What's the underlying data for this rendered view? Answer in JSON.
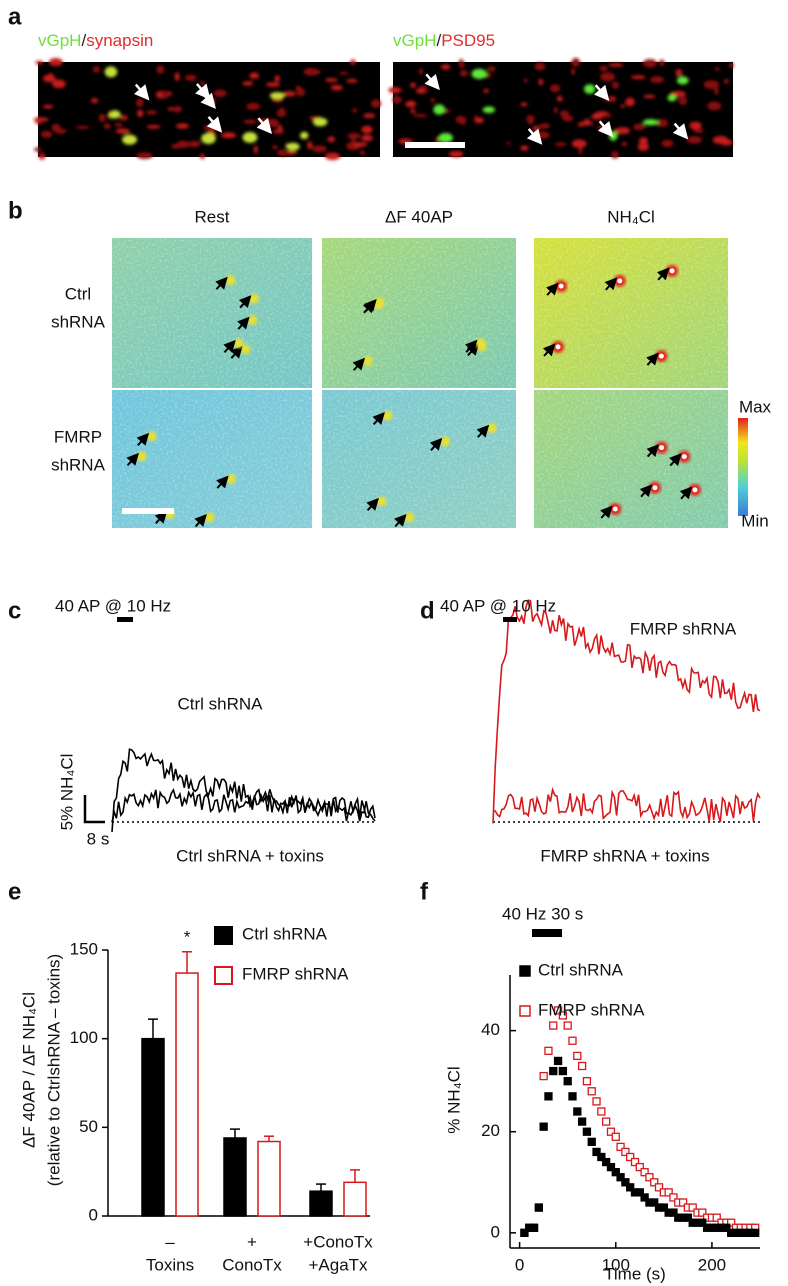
{
  "panel_labels": [
    "a",
    "b",
    "c",
    "d",
    "e",
    "f"
  ],
  "panel_a": {
    "images": [
      {
        "label_parts": [
          "vGpH",
          "/",
          "synapsin"
        ]
      },
      {
        "label_parts": [
          "vGpH",
          "/",
          "PSD95"
        ]
      }
    ]
  },
  "panel_b": {
    "columns": [
      "Rest",
      "ΔF 40AP",
      "NH₄Cl"
    ],
    "rows": [
      [
        "Ctrl",
        "shRNA"
      ],
      [
        "FMRP",
        "shRNA"
      ]
    ],
    "scale": [
      "Max",
      "Min"
    ]
  },
  "panel_c": {
    "stimulus": "40 AP @ 10 Hz",
    "traces": [
      "Ctrl shRNA",
      "Ctrl shRNA + toxins"
    ],
    "scale_y": "5% NH₄Cl",
    "scale_x": "8 s"
  },
  "panel_d": {
    "stimulus": "40 AP @ 10 Hz",
    "traces": [
      "FMRP shRNA",
      "FMRP shRNA + toxins"
    ]
  },
  "chart_data": [
    {
      "type": "bar",
      "ylabel": [
        "ΔF 40AP / ΔF NH₄Cl",
        "(relative to CtrlshRNA – toxins)"
      ],
      "categories": [
        [
          "–",
          "Toxins"
        ],
        [
          "+",
          "ConoTx"
        ],
        [
          "+ConoTx",
          "+AgaTx"
        ]
      ],
      "series": [
        {
          "name": "Ctrl shRNA",
          "color": "#000000",
          "filled": true,
          "values": [
            100,
            44,
            14
          ],
          "errors": [
            11,
            5,
            4
          ]
        },
        {
          "name": "FMRP shRNA",
          "color": "#d7191c",
          "filled": false,
          "values": [
            137,
            42,
            19
          ],
          "errors": [
            12,
            3,
            7
          ]
        }
      ],
      "annotations": [
        {
          "text": "*",
          "series": 1,
          "category": 0
        }
      ],
      "ylim": [
        0,
        150
      ],
      "yticks": [
        0,
        50,
        100,
        150
      ],
      "legend": "upper right"
    },
    {
      "type": "scatter",
      "xlabel": "Time (s)",
      "ylabel": "% NH₄Cl",
      "annotation": "40 Hz 30 s",
      "x": [
        5,
        10,
        15,
        20,
        25,
        30,
        35,
        40,
        45,
        50,
        55,
        60,
        65,
        70,
        75,
        80,
        85,
        90,
        95,
        100,
        105,
        110,
        115,
        120,
        125,
        130,
        135,
        140,
        145,
        150,
        155,
        160,
        165,
        170,
        175,
        180,
        185,
        190,
        195,
        200,
        205,
        210,
        215,
        220,
        225,
        230,
        235,
        240,
        245
      ],
      "series": [
        {
          "name": "Ctrl shRNA",
          "color": "#000000",
          "filled": true,
          "values": [
            0,
            1,
            1,
            5,
            21,
            27,
            32,
            34,
            32,
            30,
            27,
            24,
            22,
            20,
            18,
            16,
            15,
            14,
            13,
            12,
            11,
            10,
            9,
            8,
            8,
            7,
            6,
            6,
            5,
            5,
            4,
            4,
            3,
            3,
            3,
            2,
            2,
            2,
            1,
            1,
            1,
            1,
            1,
            0,
            0,
            0,
            0,
            0,
            0
          ]
        },
        {
          "name": "FMRP shRNA",
          "color": "#d7191c",
          "filled": false,
          "values": [
            0,
            1,
            1,
            5,
            31,
            36,
            41,
            44,
            43,
            41,
            38,
            35,
            33,
            30,
            28,
            26,
            24,
            22,
            20,
            19,
            17,
            16,
            15,
            14,
            13,
            12,
            11,
            10,
            9,
            8,
            8,
            7,
            6,
            6,
            5,
            5,
            4,
            4,
            3,
            3,
            3,
            2,
            2,
            2,
            1,
            1,
            1,
            1,
            1
          ]
        }
      ],
      "xlim": [
        -10,
        250
      ],
      "xticks": [
        0,
        100,
        200
      ],
      "ylim": [
        -3,
        51
      ],
      "yticks": [
        0,
        20,
        40
      ],
      "legend": "upper right"
    }
  ]
}
